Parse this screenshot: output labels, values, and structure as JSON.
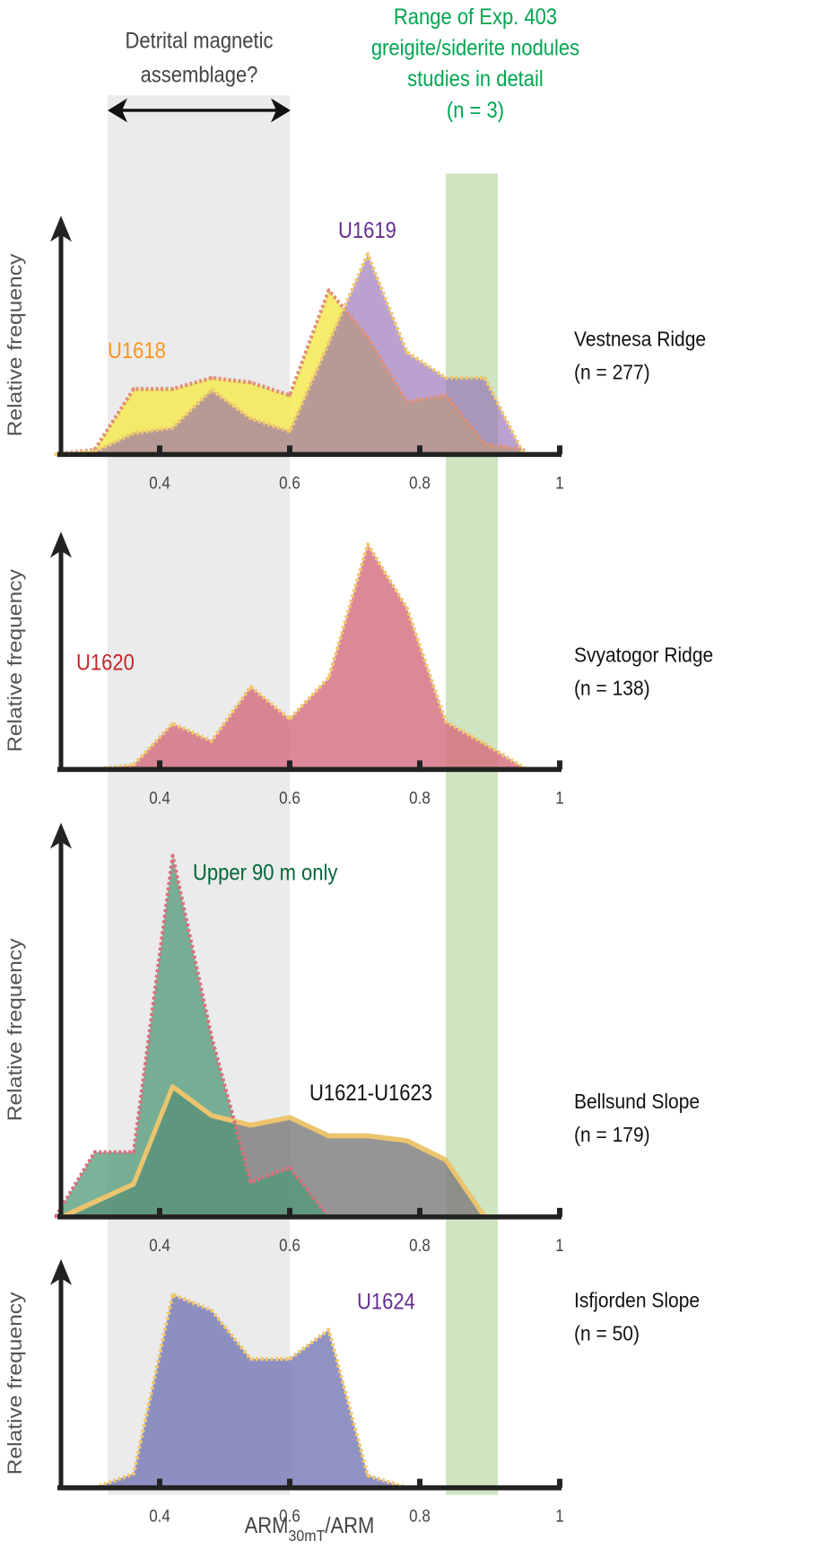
{
  "annotations": {
    "detrital_line1": "Detrital magnetic",
    "detrital_line2": "assemblage?",
    "range_line1": "Range of Exp. 403",
    "range_line2": "greigite/siderite nodules",
    "range_line3": "studies in detail",
    "range_line4": "(n = 3)",
    "range_color": "#00a651",
    "detrital_range": [
      0.32,
      0.6
    ],
    "nodule_range": [
      0.84,
      0.92
    ]
  },
  "xlabel_main": "ARM",
  "xlabel_sub": "30mT",
  "xlabel_tail": "/ARM",
  "chart_data": [
    {
      "type": "area",
      "site": "Vestnesa Ridge",
      "n_label": "(n = 277)",
      "ylabel": "Relative frequency",
      "xlim": [
        0.25,
        1.0
      ],
      "ylim": [
        0,
        25
      ],
      "xticks": [
        "0.4",
        "0.6",
        "0.8",
        "1"
      ],
      "series": [
        {
          "name": "U1618",
          "fill": "#f5ea52",
          "fill_opacity": 0.85,
          "line": "#e0907a",
          "label_color": "#f7941d",
          "x": [
            0.24,
            0.3,
            0.36,
            0.42,
            0.48,
            0.54,
            0.6,
            0.66,
            0.72,
            0.78,
            0.84,
            0.9,
            0.96
          ],
          "y": [
            0,
            0.5,
            7.1,
            7.1,
            8.3,
            7.8,
            6.4,
            17.8,
            12.7,
            5.7,
            6.4,
            1.1,
            0.5
          ]
        },
        {
          "name": "U1619",
          "fill": "#8d62b0",
          "fill_opacity": 0.6,
          "line": "#f0c870",
          "label_color": "#662d91",
          "x": [
            0.24,
            0.3,
            0.36,
            0.42,
            0.48,
            0.54,
            0.6,
            0.66,
            0.72,
            0.78,
            0.84,
            0.9,
            0.96
          ],
          "y": [
            0,
            0.3,
            2.3,
            2.9,
            7.0,
            3.9,
            2.5,
            12.1,
            21.7,
            11.1,
            8.3,
            8.3,
            0
          ]
        }
      ]
    },
    {
      "type": "area",
      "site": "Svyatogor Ridge",
      "n_label": "(n = 138)",
      "ylabel": "Relative frequency",
      "xlim": [
        0.25,
        1.0
      ],
      "ylim": [
        0,
        25
      ],
      "xticks": [
        "0.4",
        "0.6",
        "0.8",
        "1"
      ],
      "series": [
        {
          "name": "U1620",
          "fill": "#d46a7c",
          "fill_opacity": 0.8,
          "line": "#f0c870",
          "label_color": "#c1272d",
          "x": [
            0.3,
            0.36,
            0.42,
            0.48,
            0.54,
            0.6,
            0.66,
            0.72,
            0.78,
            0.84,
            0.9,
            0.96
          ],
          "y": [
            0,
            0.5,
            5.0,
            3.1,
            9.0,
            5.5,
            10.0,
            24.5,
            17.6,
            5.2,
            2.8,
            0.2
          ]
        }
      ]
    },
    {
      "type": "area",
      "site": "Bellsund Slope",
      "n_label": "(n = 179)",
      "ylabel": "Relative frequency",
      "xlim": [
        0.25,
        1.0
      ],
      "ylim": [
        0,
        40
      ],
      "xticks": [
        "0.4",
        "0.6",
        "0.8",
        "1"
      ],
      "series": [
        {
          "name": "U1621-U1623",
          "fill": "#7a7a7a",
          "fill_opacity": 0.8,
          "line": "#ecc46e",
          "solid": true,
          "label_color": "#111111",
          "x": [
            0.25,
            0.36,
            0.42,
            0.48,
            0.54,
            0.6,
            0.66,
            0.72,
            0.78,
            0.84,
            0.9
          ],
          "y": [
            0,
            3.4,
            13.5,
            10.5,
            9.5,
            10.3,
            8.4,
            8.4,
            7.9,
            5.9,
            0
          ]
        },
        {
          "name": "Upper 90 m only",
          "fill": "#4f9a78",
          "fill_opacity": 0.75,
          "line": "#d9707e",
          "label_color": "#006837",
          "x": [
            0.24,
            0.3,
            0.36,
            0.42,
            0.48,
            0.54,
            0.6,
            0.66,
            0.72,
            0.78,
            0.84,
            0.9,
            0.96
          ],
          "y": [
            0,
            6.7,
            6.7,
            37.4,
            18.6,
            3.6,
            5.1,
            0,
            0,
            0,
            0,
            0,
            0
          ]
        }
      ]
    },
    {
      "type": "area",
      "site": "Isfjorden Slope",
      "n_label": "(n = 50)",
      "ylabel": "Relative frequency",
      "xlim": [
        0.25,
        1.0
      ],
      "ylim": [
        0,
        25
      ],
      "xticks": [
        "0.4",
        "0.6",
        "0.8",
        "1"
      ],
      "series": [
        {
          "name": "U1624",
          "fill": "#7d7fb8",
          "fill_opacity": 0.85,
          "line": "#f0c870",
          "label_color": "#662d91",
          "x": [
            0.3,
            0.36,
            0.42,
            0.48,
            0.54,
            0.6,
            0.66,
            0.72,
            0.78
          ],
          "y": [
            0,
            1.6,
            21.9,
            20.1,
            14.6,
            14.6,
            17.9,
            1.4,
            0
          ]
        }
      ]
    }
  ]
}
